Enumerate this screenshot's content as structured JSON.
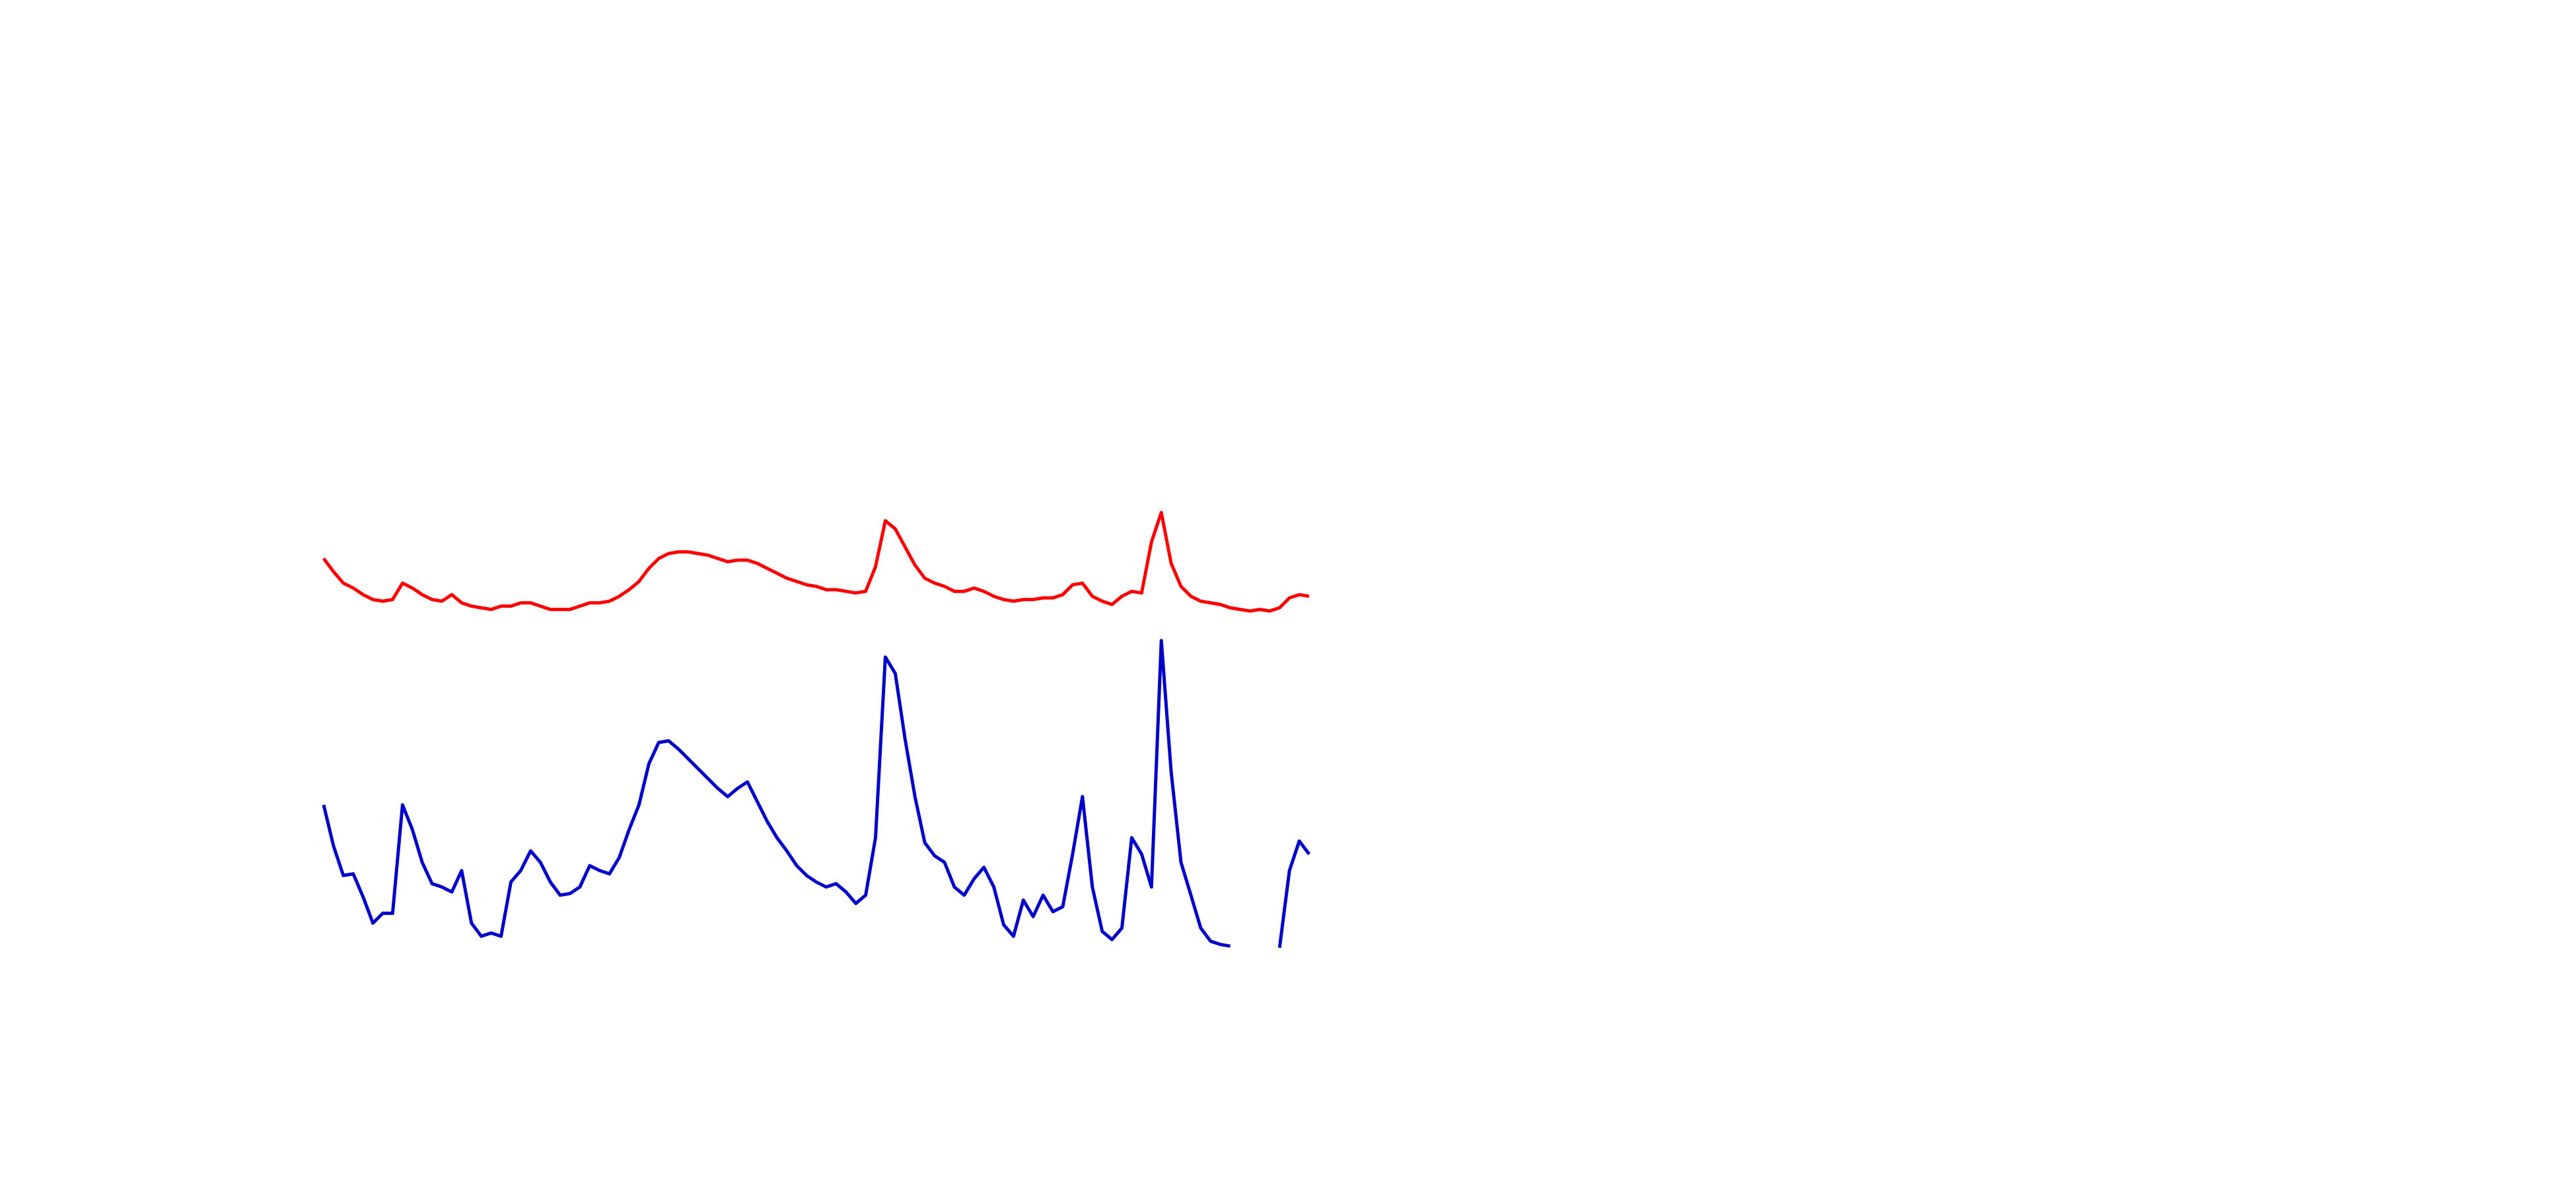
{
  "chart_data": {
    "type": "line",
    "x": [
      0,
      1,
      2,
      3,
      4,
      5,
      6,
      7,
      8,
      9,
      10,
      11,
      12,
      13,
      14,
      15,
      16,
      17,
      18,
      19,
      20,
      21,
      22,
      23,
      24,
      25,
      26,
      27,
      28,
      29,
      30,
      31,
      32,
      33,
      34,
      35,
      36,
      37,
      38,
      39,
      40,
      41,
      42,
      43,
      44,
      45,
      46,
      47,
      48,
      49,
      50,
      51,
      52,
      53,
      54,
      55,
      56,
      57,
      58,
      59,
      60,
      61,
      62,
      63,
      64,
      65,
      66,
      67,
      68,
      69,
      70,
      71,
      72,
      73,
      74,
      75,
      76,
      77,
      78,
      79,
      80,
      81,
      82,
      83,
      84,
      85,
      86,
      87,
      88,
      89,
      90,
      91,
      92,
      93,
      94,
      95,
      96,
      97,
      98,
      99,
      100
    ],
    "xlim": [
      0,
      100
    ],
    "ylim": [
      0,
      300
    ],
    "series": [
      {
        "color": "#ff0000",
        "values": [
          260,
          252,
          245,
          242,
          238,
          235,
          234,
          235,
          245,
          242,
          238,
          235,
          234,
          238,
          233,
          231,
          230,
          229,
          231,
          231,
          233,
          233,
          231,
          229,
          229,
          229,
          231,
          233,
          233,
          234,
          237,
          241,
          246,
          254,
          260,
          263,
          264,
          264,
          263,
          262,
          260,
          258,
          259,
          259,
          257,
          254,
          251,
          248,
          246,
          244,
          243,
          241,
          241,
          240,
          239,
          240,
          255,
          283,
          278,
          267,
          256,
          248,
          245,
          243,
          240,
          240,
          242,
          240,
          237,
          235,
          234,
          235,
          235,
          236,
          236,
          238,
          244,
          245,
          237,
          234,
          232,
          237,
          240,
          239,
          270,
          288,
          257,
          243,
          237,
          234,
          233,
          232,
          230,
          229,
          228,
          229,
          228,
          230,
          236,
          238,
          237
        ]
      },
      {
        "color": "#0000cc",
        "values": [
          110,
          85,
          67,
          68,
          54,
          38,
          44,
          44,
          110,
          95,
          75,
          62,
          60,
          57,
          70,
          38,
          30,
          32,
          30,
          63,
          70,
          82,
          75,
          63,
          55,
          56,
          60,
          73,
          70,
          68,
          78,
          95,
          110,
          135,
          148,
          149,
          144,
          138,
          132,
          126,
          120,
          115,
          120,
          124,
          112,
          100,
          90,
          82,
          73,
          67,
          63,
          60,
          62,
          57,
          50,
          55,
          90,
          200,
          190,
          150,
          115,
          87,
          79,
          75,
          60,
          55,
          65,
          72,
          60,
          37,
          30,
          52,
          42,
          55,
          45,
          48,
          80,
          115,
          60,
          33,
          28,
          35,
          90,
          80,
          60,
          210,
          130,
          75,
          55,
          35,
          27,
          25,
          24,
          null,
          null,
          null,
          null,
          23,
          70,
          88,
          80
        ]
      }
    ]
  }
}
